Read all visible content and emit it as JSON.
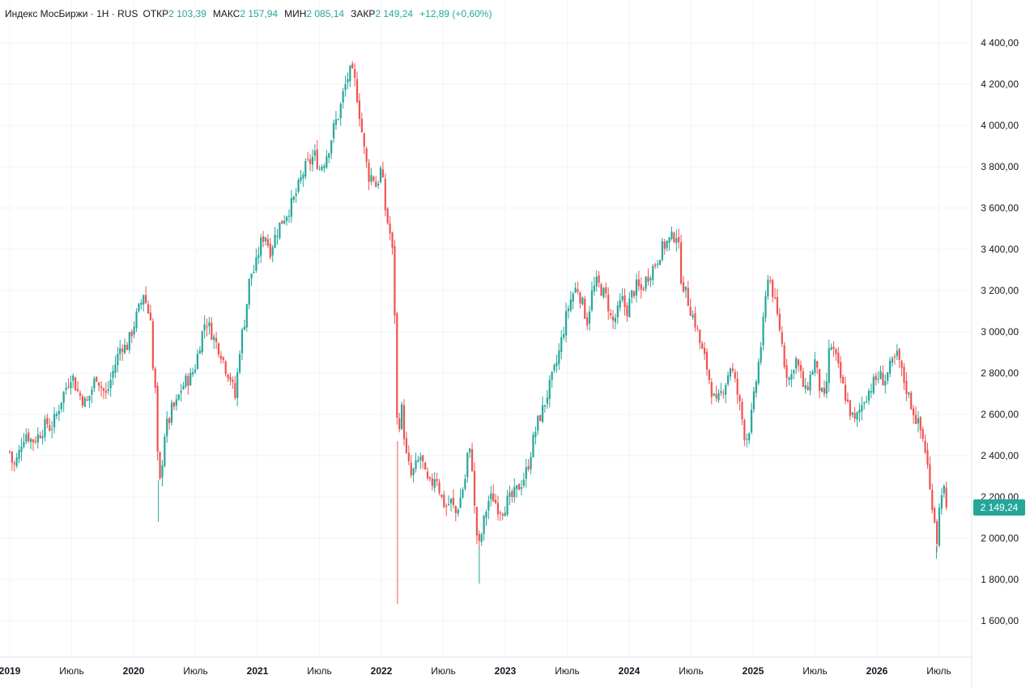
{
  "header": {
    "symbol": "Индекс МосБиржи · 1Н · RUS",
    "open_label": "ОТКР",
    "open_value": "2 103,39",
    "high_label": "МАКС",
    "high_value": "2 157,94",
    "low_label": "МИН",
    "low_value": "2 085,14",
    "close_label": "ЗАКР",
    "close_value": "2 149,24",
    "change": "+12,89 (+0,60%)"
  },
  "colors": {
    "up": "#26a69a",
    "down": "#ef5350",
    "grid": "#f0f3fa",
    "axis_text": "#131722",
    "price_tag": "#26a69a"
  },
  "price_tag": {
    "value": 2149.24,
    "label": "2 149,24"
  },
  "chart_data": {
    "type": "candlestick",
    "title": "Индекс МосБиржи · 1Н · RUS",
    "xlabel": "",
    "ylabel": "",
    "ylim": [
      1420,
      4480
    ],
    "xlim": [
      2019.0,
      2026.95
    ],
    "grid": true,
    "y_ticks": [
      {
        "value": 1600,
        "label": "1 600,00"
      },
      {
        "value": 1800,
        "label": "1 800,00"
      },
      {
        "value": 2000,
        "label": "2 000,00"
      },
      {
        "value": 2200,
        "label": "2 200,00"
      },
      {
        "value": 2400,
        "label": "2 400,00"
      },
      {
        "value": 2600,
        "label": "2 600,00"
      },
      {
        "value": 2800,
        "label": "2 800,00"
      },
      {
        "value": 3000,
        "label": "3 000,00"
      },
      {
        "value": 3200,
        "label": "3 200,00"
      },
      {
        "value": 3400,
        "label": "3 400,00"
      },
      {
        "value": 3600,
        "label": "3 600,00"
      },
      {
        "value": 3800,
        "label": "3 800,00"
      },
      {
        "value": 4000,
        "label": "4 000,00"
      },
      {
        "value": 4200,
        "label": "4 200,00"
      },
      {
        "value": 4400,
        "label": "4 400,00"
      }
    ],
    "x_ticks": [
      {
        "value": 2019.0,
        "label": "2019",
        "year": true
      },
      {
        "value": 2019.5,
        "label": "Июль",
        "year": false
      },
      {
        "value": 2020.0,
        "label": "2020",
        "year": true
      },
      {
        "value": 2020.5,
        "label": "Июль",
        "year": false
      },
      {
        "value": 2021.0,
        "label": "2021",
        "year": true
      },
      {
        "value": 2021.5,
        "label": "Июль",
        "year": false
      },
      {
        "value": 2022.0,
        "label": "2022",
        "year": true
      },
      {
        "value": 2022.5,
        "label": "Июль",
        "year": false
      },
      {
        "value": 2023.0,
        "label": "2023",
        "year": true
      },
      {
        "value": 2023.5,
        "label": "Июль",
        "year": false
      },
      {
        "value": 2024.0,
        "label": "2024",
        "year": true
      },
      {
        "value": 2024.5,
        "label": "Июль",
        "year": false
      },
      {
        "value": 2025.0,
        "label": "2025",
        "year": true
      },
      {
        "value": 2025.5,
        "label": "Июль",
        "year": false
      },
      {
        "value": 2026.0,
        "label": "2026",
        "year": true
      },
      {
        "value": 2026.5,
        "label": "Июль",
        "year": false
      }
    ],
    "close_series": [
      [
        2019.0,
        2420
      ],
      [
        2019.03,
        2340
      ],
      [
        2019.07,
        2400
      ],
      [
        2019.1,
        2480
      ],
      [
        2019.13,
        2510
      ],
      [
        2019.18,
        2470
      ],
      [
        2019.22,
        2490
      ],
      [
        2019.27,
        2530
      ],
      [
        2019.3,
        2560
      ],
      [
        2019.33,
        2530
      ],
      [
        2019.38,
        2600
      ],
      [
        2019.42,
        2680
      ],
      [
        2019.46,
        2740
      ],
      [
        2019.5,
        2800
      ],
      [
        2019.54,
        2720
      ],
      [
        2019.58,
        2680
      ],
      [
        2019.62,
        2650
      ],
      [
        2019.66,
        2720
      ],
      [
        2019.7,
        2790
      ],
      [
        2019.74,
        2730
      ],
      [
        2019.78,
        2690
      ],
      [
        2019.82,
        2780
      ],
      [
        2019.86,
        2860
      ],
      [
        2019.9,
        2940
      ],
      [
        2019.94,
        2920
      ],
      [
        2019.98,
        2990
      ],
      [
        2020.02,
        3070
      ],
      [
        2020.06,
        3140
      ],
      [
        2020.08,
        3190
      ],
      [
        2020.1,
        3140
      ],
      [
        2020.12,
        3090
      ],
      [
        2020.14,
        3080
      ],
      [
        2020.16,
        2750
      ],
      [
        2020.18,
        2700
      ],
      [
        2020.2,
        2250
      ],
      [
        2020.22,
        2280
      ],
      [
        2020.24,
        2450
      ],
      [
        2020.26,
        2560
      ],
      [
        2020.28,
        2540
      ],
      [
        2020.3,
        2620
      ],
      [
        2020.34,
        2640
      ],
      [
        2020.38,
        2720
      ],
      [
        2020.42,
        2760
      ],
      [
        2020.46,
        2780
      ],
      [
        2020.5,
        2840
      ],
      [
        2020.54,
        2960
      ],
      [
        2020.58,
        3060
      ],
      [
        2020.62,
        3010
      ],
      [
        2020.66,
        2950
      ],
      [
        2020.7,
        2910
      ],
      [
        2020.74,
        2830
      ],
      [
        2020.78,
        2780
      ],
      [
        2020.82,
        2680
      ],
      [
        2020.86,
        2940
      ],
      [
        2020.9,
        3070
      ],
      [
        2020.94,
        3280
      ],
      [
        2020.98,
        3300
      ],
      [
        2021.02,
        3420
      ],
      [
        2021.06,
        3480
      ],
      [
        2021.1,
        3390
      ],
      [
        2021.14,
        3460
      ],
      [
        2021.18,
        3520
      ],
      [
        2021.22,
        3560
      ],
      [
        2021.26,
        3600
      ],
      [
        2021.3,
        3650
      ],
      [
        2021.34,
        3720
      ],
      [
        2021.38,
        3790
      ],
      [
        2021.42,
        3820
      ],
      [
        2021.46,
        3860
      ],
      [
        2021.5,
        3790
      ],
      [
        2021.54,
        3830
      ],
      [
        2021.58,
        3900
      ],
      [
        2021.62,
        4000
      ],
      [
        2021.66,
        4060
      ],
      [
        2021.69,
        4150
      ],
      [
        2021.72,
        4220
      ],
      [
        2021.75,
        4260
      ],
      [
        2021.78,
        4230
      ],
      [
        2021.81,
        4120
      ],
      [
        2021.84,
        3980
      ],
      [
        2021.87,
        3840
      ],
      [
        2021.9,
        3750
      ],
      [
        2021.93,
        3760
      ],
      [
        2021.96,
        3700
      ],
      [
        2022.0,
        3800
      ],
      [
        2022.03,
        3600
      ],
      [
        2022.06,
        3500
      ],
      [
        2022.08,
        3450
      ],
      [
        2022.1,
        3300
      ],
      [
        2022.13,
        2470
      ],
      [
        2022.16,
        2650
      ],
      [
        2022.2,
        2400
      ],
      [
        2022.24,
        2300
      ],
      [
        2022.28,
        2350
      ],
      [
        2022.32,
        2400
      ],
      [
        2022.36,
        2280
      ],
      [
        2022.4,
        2250
      ],
      [
        2022.44,
        2320
      ],
      [
        2022.48,
        2200
      ],
      [
        2022.52,
        2150
      ],
      [
        2022.56,
        2180
      ],
      [
        2022.6,
        2120
      ],
      [
        2022.64,
        2200
      ],
      [
        2022.68,
        2300
      ],
      [
        2022.7,
        2440
      ],
      [
        2022.73,
        2380
      ],
      [
        2022.76,
        2050
      ],
      [
        2022.79,
        1960
      ],
      [
        2022.82,
        2060
      ],
      [
        2022.86,
        2180
      ],
      [
        2022.9,
        2200
      ],
      [
        2022.94,
        2150
      ],
      [
        2022.98,
        2140
      ],
      [
        2023.02,
        2180
      ],
      [
        2023.06,
        2200
      ],
      [
        2023.1,
        2240
      ],
      [
        2023.14,
        2280
      ],
      [
        2023.18,
        2340
      ],
      [
        2023.22,
        2460
      ],
      [
        2023.26,
        2560
      ],
      [
        2023.3,
        2620
      ],
      [
        2023.34,
        2700
      ],
      [
        2023.38,
        2780
      ],
      [
        2023.42,
        2860
      ],
      [
        2023.46,
        2980
      ],
      [
        2023.5,
        3100
      ],
      [
        2023.54,
        3180
      ],
      [
        2023.58,
        3220
      ],
      [
        2023.62,
        3140
      ],
      [
        2023.66,
        3050
      ],
      [
        2023.7,
        3190
      ],
      [
        2023.74,
        3240
      ],
      [
        2023.78,
        3200
      ],
      [
        2023.82,
        3160
      ],
      [
        2023.86,
        3040
      ],
      [
        2023.9,
        3080
      ],
      [
        2023.94,
        3160
      ],
      [
        2023.98,
        3100
      ],
      [
        2024.02,
        3180
      ],
      [
        2024.06,
        3220
      ],
      [
        2024.1,
        3200
      ],
      [
        2024.14,
        3260
      ],
      [
        2024.18,
        3300
      ],
      [
        2024.22,
        3340
      ],
      [
        2024.26,
        3400
      ],
      [
        2024.3,
        3430
      ],
      [
        2024.34,
        3450
      ],
      [
        2024.38,
        3480
      ],
      [
        2024.4,
        3400
      ],
      [
        2024.42,
        3260
      ],
      [
        2024.46,
        3180
      ],
      [
        2024.5,
        3100
      ],
      [
        2024.54,
        3030
      ],
      [
        2024.58,
        2920
      ],
      [
        2024.62,
        2850
      ],
      [
        2024.66,
        2730
      ],
      [
        2024.7,
        2640
      ],
      [
        2024.74,
        2700
      ],
      [
        2024.78,
        2760
      ],
      [
        2024.82,
        2840
      ],
      [
        2024.86,
        2740
      ],
      [
        2024.9,
        2620
      ],
      [
        2024.94,
        2470
      ],
      [
        2024.98,
        2560
      ],
      [
        2025.02,
        2740
      ],
      [
        2025.06,
        2920
      ],
      [
        2025.09,
        3080
      ],
      [
        2025.12,
        3280
      ],
      [
        2025.15,
        3220
      ],
      [
        2025.18,
        3120
      ],
      [
        2025.22,
        3000
      ],
      [
        2025.26,
        2820
      ],
      [
        2025.3,
        2760
      ],
      [
        2025.34,
        2880
      ],
      [
        2025.38,
        2800
      ],
      [
        2025.42,
        2700
      ],
      [
        2025.46,
        2780
      ],
      [
        2025.5,
        2860
      ],
      [
        2025.54,
        2720
      ],
      [
        2025.58,
        2660
      ],
      [
        2025.62,
        2950
      ],
      [
        2025.66,
        2890
      ],
      [
        2025.7,
        2790
      ],
      [
        2025.74,
        2700
      ],
      [
        2025.78,
        2620
      ],
      [
        2025.82,
        2560
      ],
      [
        2025.86,
        2620
      ],
      [
        2025.9,
        2680
      ],
      [
        2025.94,
        2720
      ],
      [
        2025.98,
        2760
      ],
      [
        2026.02,
        2790
      ],
      [
        2026.06,
        2760
      ],
      [
        2026.1,
        2820
      ],
      [
        2026.14,
        2860
      ],
      [
        2026.17,
        2890
      ],
      [
        2026.2,
        2800
      ],
      [
        2026.24,
        2720
      ],
      [
        2026.28,
        2640
      ],
      [
        2026.32,
        2570
      ],
      [
        2026.36,
        2510
      ],
      [
        2026.4,
        2400
      ],
      [
        2026.43,
        2210
      ],
      [
        2026.46,
        2140
      ],
      [
        2026.48,
        1960
      ],
      [
        2026.5,
        2120
      ],
      [
        2026.53,
        2280
      ],
      [
        2026.56,
        2150
      ]
    ],
    "spike_wicks": [
      [
        2022.13,
        1681,
        2470
      ],
      [
        2020.2,
        2080,
        2280
      ],
      [
        2022.79,
        1780,
        1960
      ],
      [
        2026.48,
        1900,
        1960
      ]
    ],
    "last_price": 2149.24
  }
}
